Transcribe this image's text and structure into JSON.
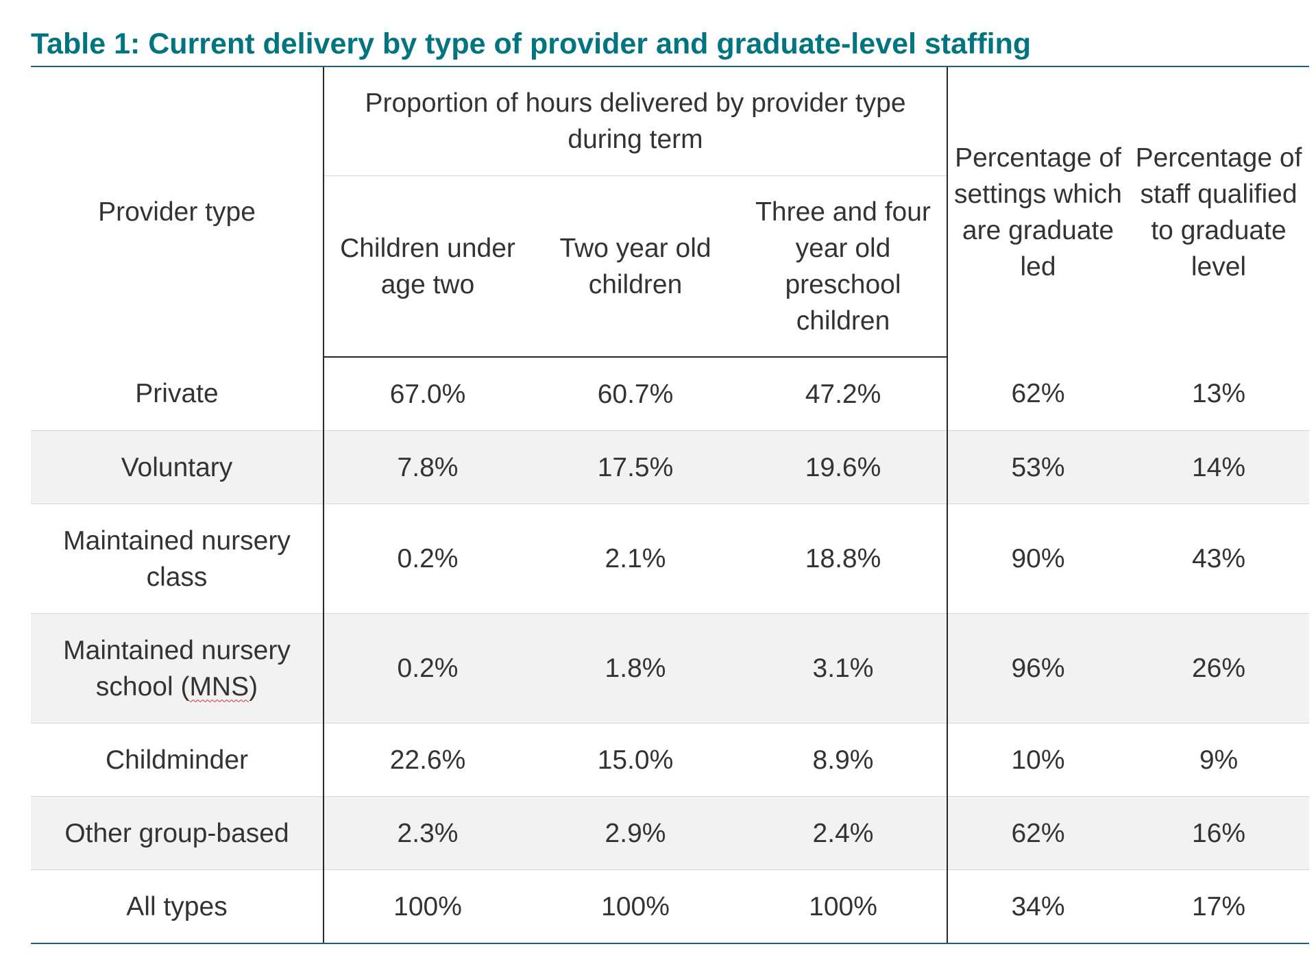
{
  "title": "Table 1: Current delivery by type of provider and graduate-level staffing",
  "colors": {
    "title": "#007580",
    "title_rule": "#1f5f74",
    "row_shade": "#f2f2f2",
    "spellcheck_underline": "#d22e2e"
  },
  "header": {
    "provider_type": "Provider type",
    "proportion_group": "Proportion of hours delivered by provider type during term",
    "under_two": "Children under age two",
    "two_year_old": "Two year old children",
    "three_four_year_old": "Three and four year old preschool children",
    "graduate_led": "Percentage of settings which are graduate led",
    "staff_qualified": "Percentage of staff qualified to graduate level"
  },
  "rows": [
    {
      "provider": "Private",
      "under_two": "67.0%",
      "two": "60.7%",
      "three_four": "47.2%",
      "graduate_led": "62%",
      "qualified": "13%"
    },
    {
      "provider": "Voluntary",
      "under_two": "7.8%",
      "two": "17.5%",
      "three_four": "19.6%",
      "graduate_led": "53%",
      "qualified": "14%"
    },
    {
      "provider": "Maintained nursery class",
      "under_two": "0.2%",
      "two": "2.1%",
      "three_four": "18.8%",
      "graduate_led": "90%",
      "qualified": "43%"
    },
    {
      "provider_prefix": "Maintained nursery school (",
      "provider_abbrev": "MNS",
      "provider_suffix": ")",
      "under_two": "0.2%",
      "two": "1.8%",
      "three_four": "3.1%",
      "graduate_led": "96%",
      "qualified": "26%"
    },
    {
      "provider": "Childminder",
      "under_two": "22.6%",
      "two": "15.0%",
      "three_four": "8.9%",
      "graduate_led": "10%",
      "qualified": "9%"
    },
    {
      "provider": "Other group-based",
      "under_two": "2.3%",
      "two": "2.9%",
      "three_four": "2.4%",
      "graduate_led": "62%",
      "qualified": "16%"
    },
    {
      "provider": "All types",
      "under_two": "100%",
      "two": "100%",
      "three_four": "100%",
      "graduate_led": "34%",
      "qualified": "17%"
    }
  ]
}
